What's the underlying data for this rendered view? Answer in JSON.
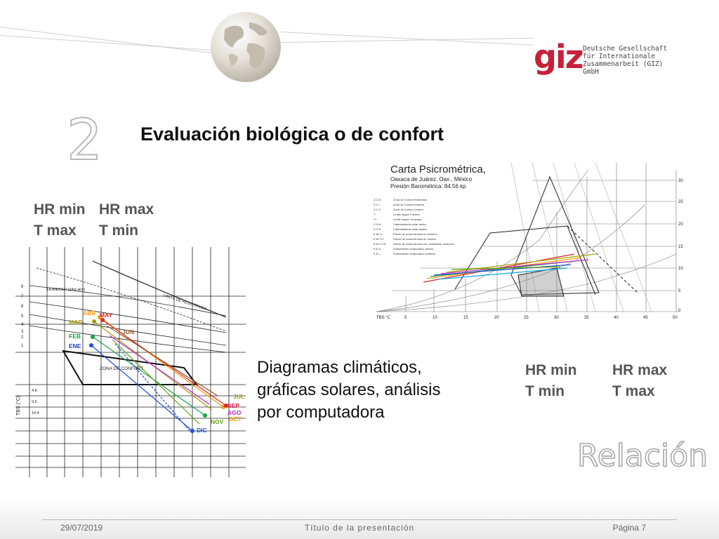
{
  "header": {
    "logo": {
      "mark": "giz",
      "lines": [
        "Deutsche Gesellschaft",
        "für Internationale",
        "Zusammenarbeit (GIZ) GmbH"
      ]
    }
  },
  "slide": {
    "number": "2",
    "title": "Evaluación biológica o de confort",
    "left_labels": {
      "col1": [
        "HR min",
        "T max"
      ],
      "col2": [
        "HR max",
        "T min"
      ]
    },
    "right_labels": {
      "col1": [
        "HR min",
        "T min"
      ],
      "col2": [
        "HR max",
        "T max"
      ]
    },
    "description": [
      "Diagramas climáticos,",
      "gráficas solares, análisis",
      "por computadora"
    ],
    "watermark": "Relación"
  },
  "bioclimatic_chart": {
    "humidity_label": "HUMEDAD (g/kg aire)",
    "limit_label": "LIMITE DE RESISTENCIA",
    "comfort_label": "ZONA DE CONFORT",
    "axis_label": "TBS (°C)",
    "y_ticks": [
      "8",
      "7",
      "6",
      "5",
      "4",
      "3",
      "2",
      "1"
    ],
    "left_ticks": [
      "4.8",
      "9.6",
      "14.4"
    ],
    "months": [
      "ENE",
      "FEB",
      "MAR",
      "ABR",
      "MAY",
      "JUN",
      "JUL",
      "AGO",
      "SEP",
      "OCT",
      "NOV",
      "DIC"
    ],
    "month_colors": [
      "#1a3fb0",
      "#16a34a",
      "#a3a000",
      "#f59e0b",
      "#dc2626",
      "#8b5a2b",
      "#a3a000",
      "#c026d3",
      "#e11d48",
      "#f59e0b",
      "#65a30d",
      "#1d4ed8"
    ]
  },
  "psychrometric_chart": {
    "title": "Carta Psicrométrica,",
    "subtitle": "Oaxaca de Juárez, Oax., México",
    "pressure": "Presión Barométrica: 84.56 kp",
    "legend": [
      {
        "code": "Z.C.E.",
        "text": "Zona de Confort Extendida"
      },
      {
        "code": "Z.C.I.",
        "text": "Zona de Confort Invierno"
      },
      {
        "code": "Z.C.V.",
        "text": "Zona de Confort Verano"
      },
      {
        "code": "**",
        "text": "Límite según Fuertes"
      },
      {
        "code": "***",
        "text": "Límite según Szokolay"
      },
      {
        "code": "C.S.A.",
        "text": "Calentamiento solar activo"
      },
      {
        "code": "C.S.P.",
        "text": "Calentamiento solar pasivo"
      },
      {
        "code": "E.M.T.I.",
        "text": "Efecto de masa térmica en invierno"
      },
      {
        "code": "E.M.T.V.",
        "text": "Efecto de masa térmica en verano"
      },
      {
        "code": "E.M.T.V.N.",
        "text": "Efecto de masa térmica con ventilación nocturna"
      },
      {
        "code": "E.E.D.",
        "text": "Enfriamiento evaporativo directo"
      },
      {
        "code": "E.E.I.",
        "text": "Enfriamiento evaporativo indirecto"
      }
    ],
    "x_label": "TBS °C",
    "x_ticks": [
      "5",
      "10",
      "15",
      "20",
      "25",
      "30",
      "35",
      "40",
      "45",
      "50"
    ],
    "y_ticks": [
      "30",
      "25",
      "20",
      "15",
      "10",
      "5",
      "0"
    ],
    "line_colors": [
      "#dc2626",
      "#f59e0b",
      "#16a34a",
      "#1d4ed8",
      "#c026d3",
      "#0ea5e9",
      "#a3a000",
      "#65a30d"
    ]
  },
  "footer": {
    "date": "29/07/2019",
    "title": "Título de la presentación",
    "page": "Página 7"
  }
}
